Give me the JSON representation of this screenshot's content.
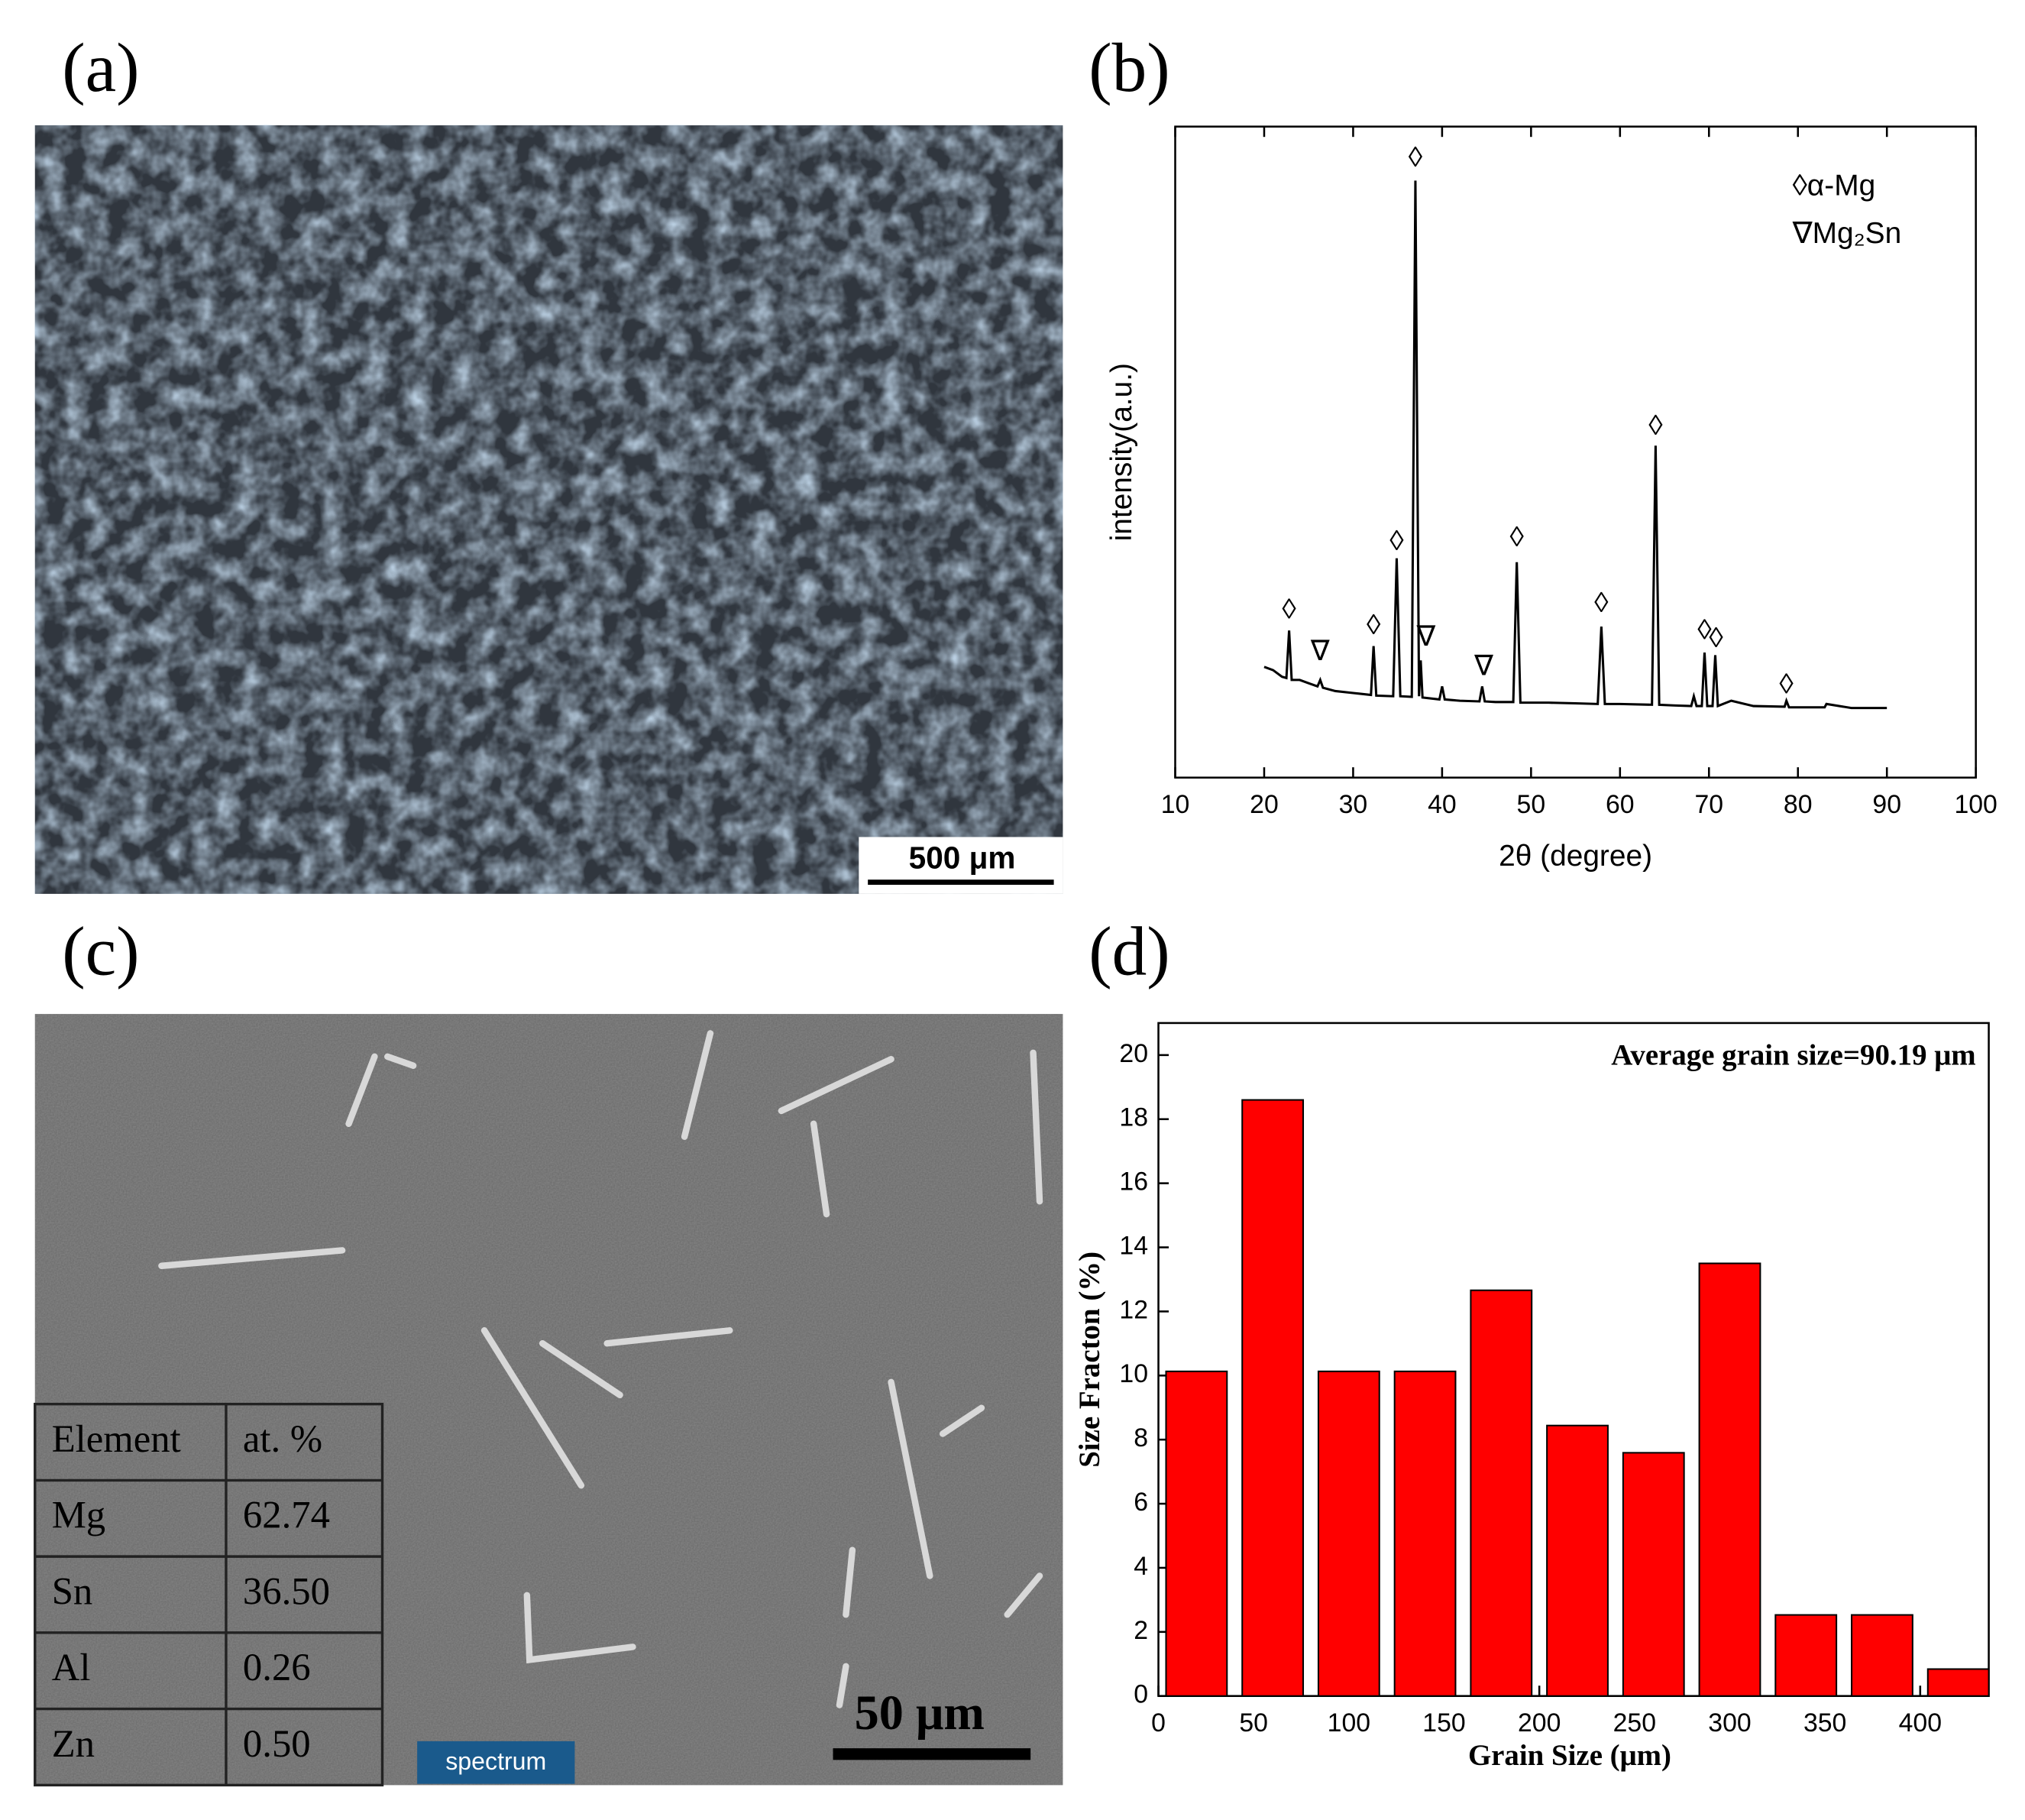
{
  "panels": {
    "a": {
      "label": "(a)",
      "scale_bar": "500 μm"
    },
    "c": {
      "label": "(c)",
      "scale_bar": "50 μm",
      "spectrum_label": "spectrum",
      "table": {
        "header": [
          "Element",
          "at. %"
        ],
        "rows": [
          [
            "Mg",
            "62.74"
          ],
          [
            "Sn",
            "36.50"
          ],
          [
            "Al",
            "0.26"
          ],
          [
            "Zn",
            "0.50"
          ]
        ]
      }
    }
  },
  "chart_data": [
    {
      "type": "line",
      "panel_label": "(b)",
      "x_label": "2θ (degree)",
      "y_label": "intensity(a.u.)",
      "color": "#000000",
      "x": [
        20,
        21,
        22,
        22.5,
        22.8,
        23.1,
        24,
        25,
        26,
        26.3,
        26.6,
        28,
        30,
        32,
        32.3,
        32.6,
        34.5,
        34.9,
        35.3,
        36.6,
        37,
        37.4,
        37.6,
        37.8,
        39.7,
        40,
        40.3,
        42,
        44.2,
        44.5,
        44.8,
        46,
        48,
        48.4,
        48.8,
        52,
        55,
        57.5,
        57.9,
        58.3,
        60,
        63.6,
        64,
        64.4,
        66,
        68,
        68.3,
        68.6,
        69.2,
        69.5,
        69.8,
        70.4,
        70.7,
        71,
        72.5,
        75,
        78.5,
        78.7,
        79,
        83,
        83.2,
        86,
        90
      ],
      "values": [
        17,
        16.5,
        15.5,
        15.3,
        22.6,
        15,
        15,
        14.5,
        14,
        15,
        13.8,
        13.3,
        13,
        12.7,
        20.2,
        12.6,
        12.5,
        33.7,
        12.5,
        12.4,
        91.7,
        12.5,
        18,
        12.3,
        12,
        14,
        12,
        11.8,
        11.7,
        14,
        11.7,
        11.6,
        11.6,
        33.1,
        11.5,
        11.5,
        11.4,
        11.3,
        23.2,
        11.3,
        11.3,
        11.2,
        51,
        11.2,
        11.1,
        11,
        12.5,
        11,
        11,
        19.2,
        11,
        11,
        18.8,
        11,
        11.8,
        11,
        10.9,
        11.8,
        10.8,
        10.8,
        11.3,
        10.7,
        10.7
      ],
      "markers": [
        {
          "x": 22.8,
          "y": 25.6,
          "symbol": "◊"
        },
        {
          "x": 26.3,
          "y": 19.2,
          "symbol": "∇"
        },
        {
          "x": 32.3,
          "y": 23.2,
          "symbol": "◊"
        },
        {
          "x": 34.9,
          "y": 36.1,
          "symbol": "◊"
        },
        {
          "x": 37,
          "y": 95,
          "symbol": "◊"
        },
        {
          "x": 38.2,
          "y": 21.4,
          "symbol": "∇"
        },
        {
          "x": 44.7,
          "y": 16.9,
          "symbol": "∇"
        },
        {
          "x": 48.4,
          "y": 36.7,
          "symbol": "◊"
        },
        {
          "x": 57.9,
          "y": 26.6,
          "symbol": "◊"
        },
        {
          "x": 64,
          "y": 53.8,
          "symbol": "◊"
        },
        {
          "x": 69.5,
          "y": 22.4,
          "symbol": "◊"
        },
        {
          "x": 70.8,
          "y": 21.2,
          "symbol": "◊"
        },
        {
          "x": 78.7,
          "y": 14.1,
          "symbol": "◊"
        }
      ],
      "legend": [
        "◊α-Mg",
        "∇Mg₂Sn"
      ],
      "xlim": [
        10,
        100
      ],
      "xticks": [
        10,
        20,
        30,
        40,
        50,
        60,
        70,
        80,
        90,
        100
      ],
      "ylim": [
        0,
        100
      ]
    },
    {
      "type": "histogram",
      "panel_label": "(d)",
      "x_label": "Grain Size (μm)",
      "y_label": "Size Fracton (%)",
      "annotation": "Average grain size=90.19 μm",
      "color": "#ff0000",
      "bins": [
        0,
        40,
        80,
        120,
        160,
        200,
        240,
        280,
        320,
        360,
        400,
        440
      ],
      "values": [
        10.13,
        18.6,
        10.13,
        10.13,
        12.66,
        8.44,
        7.59,
        13.5,
        2.53,
        2.53,
        0.84
      ],
      "xlim": [
        0,
        436
      ],
      "xticks": [
        0,
        50,
        100,
        150,
        200,
        250,
        300,
        350,
        400
      ],
      "ylim": [
        0,
        21
      ],
      "yticks": [
        0,
        2,
        4,
        6,
        8,
        10,
        12,
        14,
        16,
        18,
        20
      ]
    }
  ]
}
